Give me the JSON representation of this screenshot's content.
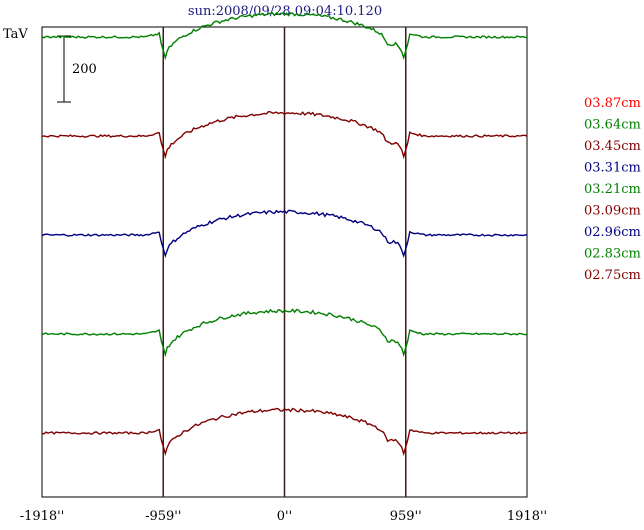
{
  "chart_data": {
    "type": "line",
    "title": "sun:2008/09/28 09:04:10.120",
    "ylabel": "TaV",
    "scale_bar_label": "200",
    "scale_bar_value": 200,
    "xlim": [
      -1918,
      1918
    ],
    "x_ticks": [
      -1918,
      -959,
      0,
      959,
      1918
    ],
    "x_tick_labels": [
      "-1918''",
      "-959''",
      "0''",
      "959''",
      "1918''"
    ],
    "vertical_markers": [
      -959,
      0,
      959
    ],
    "grid": false,
    "legend_position": "right",
    "series": [
      {
        "name": "03.87cm",
        "color": "#ff0000",
        "offset": 2400,
        "baseline": 0,
        "disk": 80,
        "limb_dip": 60,
        "dip_at_right": 90
      },
      {
        "name": "03.64cm",
        "color": "#008000",
        "offset": 2100,
        "baseline": 0,
        "disk": 70,
        "limb_dip": 80,
        "dip_at_right": 80
      },
      {
        "name": "03.45cm",
        "color": "#800000",
        "offset": 1800,
        "baseline": 0,
        "disk": 70,
        "limb_dip": 80,
        "dip_at_right": 70
      },
      {
        "name": "03.31cm",
        "color": "#000080",
        "offset": 1500,
        "baseline": 0,
        "disk": 70,
        "limb_dip": 70,
        "dip_at_right": 80
      },
      {
        "name": "03.21cm",
        "color": "#008000",
        "offset": 1200,
        "baseline": 0,
        "disk": 70,
        "limb_dip": 80,
        "dip_at_right": 70
      },
      {
        "name": "03.09cm",
        "color": "#800000",
        "offset": 900,
        "baseline": 0,
        "disk": 70,
        "limb_dip": 80,
        "dip_at_right": 70
      },
      {
        "name": "02.96cm",
        "color": "#000080",
        "offset": 600,
        "baseline": 0,
        "disk": 70,
        "limb_dip": 80,
        "dip_at_right": 70
      },
      {
        "name": "02.83cm",
        "color": "#008000",
        "offset": 300,
        "baseline": 0,
        "disk": 70,
        "limb_dip": 80,
        "dip_at_right": 70
      },
      {
        "name": "02.75cm",
        "color": "#800000",
        "offset": 0,
        "baseline": 0,
        "disk": 70,
        "limb_dip": 80,
        "dip_at_right": 80
      }
    ]
  }
}
